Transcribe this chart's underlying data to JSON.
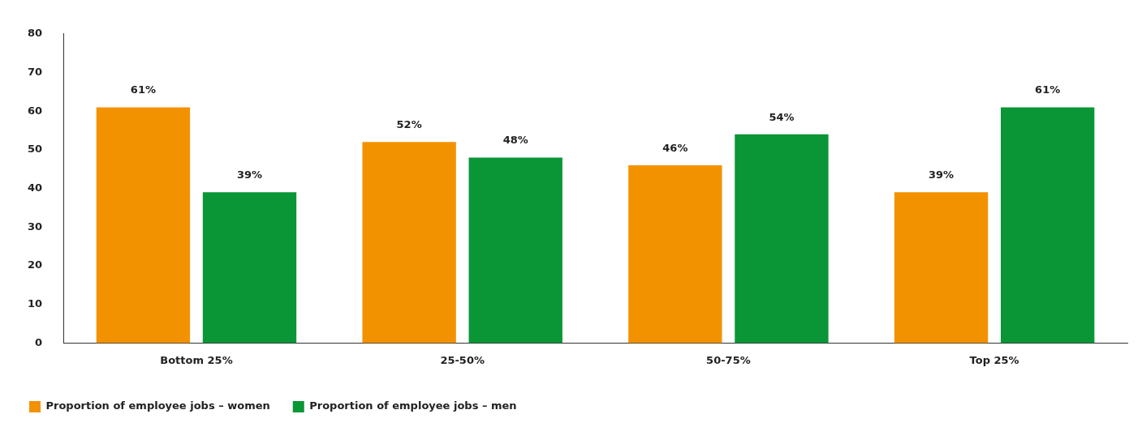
{
  "chart_data": {
    "type": "bar",
    "categories": [
      "Bottom 25%",
      "25-50%",
      "50-75%",
      "Top 25%"
    ],
    "series": [
      {
        "name": "Proportion of employee jobs – women",
        "color": "#f39200",
        "values": [
          61,
          52,
          46,
          39
        ],
        "value_labels": [
          "61%",
          "52%",
          "46%",
          "39%"
        ]
      },
      {
        "name": "Proportion of employee jobs – men",
        "color": "#0a9636",
        "values": [
          39,
          48,
          54,
          61
        ],
        "value_labels": [
          "39%",
          "48%",
          "54%",
          "61%"
        ]
      }
    ],
    "ylim": [
      0,
      80
    ],
    "yticks": [
      0,
      10,
      20,
      30,
      40,
      50,
      60,
      70,
      80
    ],
    "grid": false,
    "legend": "bottom left"
  }
}
